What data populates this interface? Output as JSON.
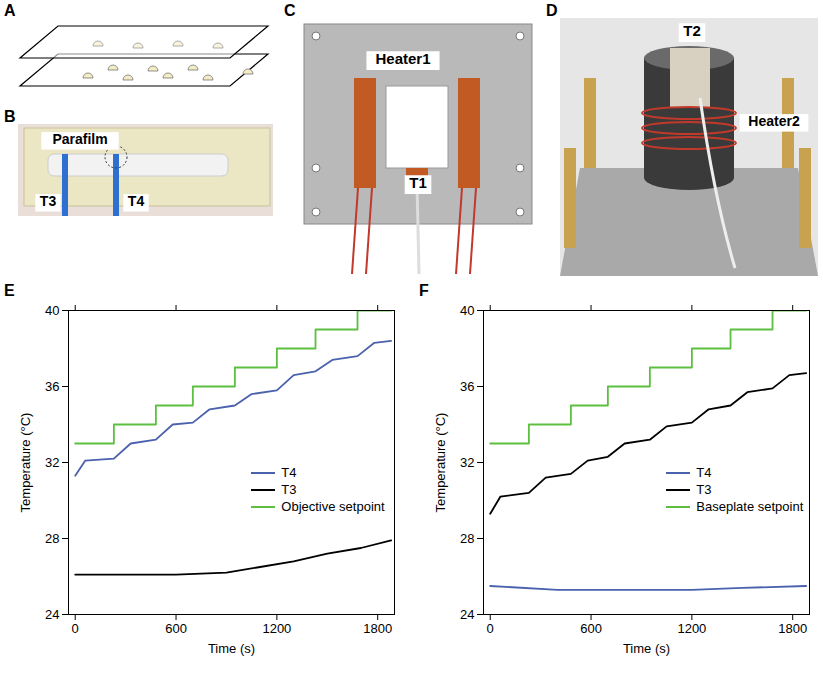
{
  "panels": [
    {
      "letter": "A"
    },
    {
      "letter": "B",
      "labels": [
        "Parafilm",
        "T3",
        "T4"
      ]
    },
    {
      "letter": "C",
      "labels": [
        "Heater1",
        "T1"
      ]
    },
    {
      "letter": "D",
      "labels": [
        "T2",
        "Heater2"
      ]
    }
  ],
  "chart_data": [
    {
      "panel": "E",
      "type": "line",
      "x_label": "Time (s)",
      "y_label": "Temperature (°C)",
      "xlim": [
        -40,
        1900
      ],
      "xticks": [
        0,
        600,
        1200,
        1800
      ],
      "ylim": [
        24,
        40
      ],
      "yticks": [
        24,
        28,
        32,
        36,
        40
      ],
      "legend": "right",
      "series": [
        {
          "name": "T4",
          "color": "#4a62ad",
          "x": [
            0,
            60,
            230,
            330,
            480,
            580,
            700,
            800,
            950,
            1050,
            1200,
            1300,
            1430,
            1530,
            1680,
            1780,
            1880
          ],
          "values": [
            31.3,
            32.1,
            32.2,
            33.0,
            33.2,
            34.0,
            34.1,
            34.8,
            35.0,
            35.6,
            35.8,
            36.6,
            36.8,
            37.4,
            37.6,
            38.3,
            38.4
          ]
        },
        {
          "name": "T3",
          "color": "#000000",
          "x": [
            0,
            600,
            900,
            1100,
            1300,
            1500,
            1700,
            1880
          ],
          "values": [
            26.1,
            26.1,
            26.2,
            26.5,
            26.8,
            27.2,
            27.5,
            27.9
          ]
        },
        {
          "name": "Objective setpoint",
          "color": "#5cbf3f",
          "x": [
            0,
            230,
            230,
            480,
            480,
            700,
            700,
            950,
            950,
            1200,
            1200,
            1430,
            1430,
            1680,
            1680,
            1880
          ],
          "values": [
            33,
            33,
            34,
            34,
            35,
            35,
            36,
            36,
            37,
            37,
            38,
            38,
            39,
            39,
            40,
            40
          ]
        }
      ]
    },
    {
      "panel": "F",
      "type": "line",
      "x_label": "Time (s)",
      "y_label": "Temperature (°C)",
      "xlim": [
        -40,
        1900
      ],
      "xticks": [
        0,
        600,
        1200,
        1800
      ],
      "ylim": [
        24,
        40
      ],
      "yticks": [
        24,
        28,
        32,
        36,
        40
      ],
      "legend": "right",
      "series": [
        {
          "name": "T4",
          "color": "#4a62ad",
          "x": [
            0,
            400,
            1200,
            1500,
            1880
          ],
          "values": [
            25.5,
            25.3,
            25.3,
            25.4,
            25.5
          ]
        },
        {
          "name": "T3",
          "color": "#000000",
          "x": [
            0,
            60,
            230,
            330,
            480,
            580,
            700,
            800,
            950,
            1050,
            1200,
            1300,
            1430,
            1530,
            1680,
            1780,
            1880
          ],
          "values": [
            29.3,
            30.2,
            30.4,
            31.2,
            31.4,
            32.1,
            32.3,
            33.0,
            33.2,
            33.9,
            34.1,
            34.8,
            35.0,
            35.7,
            35.9,
            36.6,
            36.7
          ]
        },
        {
          "name": "Baseplate setpoint",
          "color": "#5cbf3f",
          "x": [
            0,
            230,
            230,
            480,
            480,
            700,
            700,
            950,
            950,
            1200,
            1200,
            1430,
            1430,
            1680,
            1680,
            1880
          ],
          "values": [
            33,
            33,
            34,
            34,
            35,
            35,
            36,
            36,
            37,
            37,
            38,
            38,
            39,
            39,
            40,
            40
          ]
        }
      ]
    }
  ]
}
